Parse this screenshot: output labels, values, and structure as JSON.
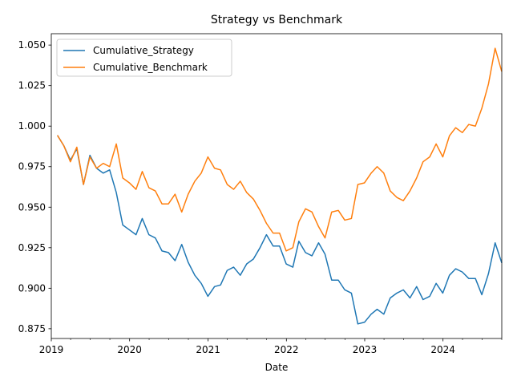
{
  "chart_data": {
    "type": "line",
    "title": "Strategy vs Benchmark",
    "xlabel": "Date",
    "ylabel": "",
    "xlim": [
      "2019-01-01",
      "2024-10-01"
    ],
    "ylim": [
      0.869,
      1.057
    ],
    "x_ticks": [
      {
        "date": "2019-01-01",
        "label": "2019"
      },
      {
        "date": "2020-01-01",
        "label": "2020"
      },
      {
        "date": "2021-01-01",
        "label": "2021"
      },
      {
        "date": "2022-01-01",
        "label": "2022"
      },
      {
        "date": "2023-01-01",
        "label": "2023"
      },
      {
        "date": "2024-01-01",
        "label": "2024"
      }
    ],
    "y_ticks": [
      "0.875",
      "0.900",
      "0.925",
      "0.950",
      "0.975",
      "1.000",
      "1.025",
      "1.050"
    ],
    "grid": false,
    "legend_position": "top-left",
    "x": [
      "2019-01-31",
      "2019-02-28",
      "2019-03-31",
      "2019-04-30",
      "2019-05-31",
      "2019-06-30",
      "2019-07-31",
      "2019-08-31",
      "2019-09-30",
      "2019-10-31",
      "2019-11-30",
      "2019-12-31",
      "2020-01-31",
      "2020-02-29",
      "2020-03-31",
      "2020-04-30",
      "2020-05-31",
      "2020-06-30",
      "2020-07-31",
      "2020-08-31",
      "2020-09-30",
      "2020-10-31",
      "2020-11-30",
      "2020-12-31",
      "2021-01-31",
      "2021-02-28",
      "2021-03-31",
      "2021-04-30",
      "2021-05-31",
      "2021-06-30",
      "2021-07-31",
      "2021-08-31",
      "2021-09-30",
      "2021-10-31",
      "2021-11-30",
      "2021-12-31",
      "2022-01-31",
      "2022-02-28",
      "2022-03-31",
      "2022-04-30",
      "2022-05-31",
      "2022-06-30",
      "2022-07-31",
      "2022-08-31",
      "2022-09-30",
      "2022-10-31",
      "2022-11-30",
      "2022-12-31",
      "2023-01-31",
      "2023-02-28",
      "2023-03-31",
      "2023-04-30",
      "2023-05-31",
      "2023-06-30",
      "2023-07-31",
      "2023-08-31",
      "2023-09-30",
      "2023-10-31",
      "2023-11-30",
      "2023-12-31",
      "2024-01-31",
      "2024-02-29",
      "2024-03-31",
      "2024-04-30",
      "2024-05-31",
      "2024-06-30",
      "2024-07-31",
      "2024-08-31",
      "2024-09-30"
    ],
    "series": [
      {
        "name": "Cumulative_Strategy",
        "color": "#1f77b4",
        "values": [
          0.994,
          0.988,
          0.979,
          0.986,
          0.964,
          0.982,
          0.974,
          0.971,
          0.973,
          0.959,
          0.939,
          0.936,
          0.933,
          0.943,
          0.933,
          0.931,
          0.923,
          0.922,
          0.917,
          0.927,
          0.916,
          0.908,
          0.903,
          0.895,
          0.901,
          0.902,
          0.911,
          0.913,
          0.908,
          0.915,
          0.918,
          0.925,
          0.933,
          0.926,
          0.926,
          0.915,
          0.913,
          0.929,
          0.922,
          0.92,
          0.928,
          0.921,
          0.905,
          0.905,
          0.899,
          0.897,
          0.878,
          0.879,
          0.884,
          0.887,
          0.884,
          0.894,
          0.897,
          0.899,
          0.894,
          0.901,
          0.893,
          0.895,
          0.903,
          0.897,
          0.908,
          0.912,
          0.91,
          0.906,
          0.906,
          0.896,
          0.909,
          0.928,
          0.916
        ]
      },
      {
        "name": "Cumulative_Benchmark",
        "color": "#ff7f0e",
        "values": [
          0.994,
          0.988,
          0.978,
          0.987,
          0.964,
          0.981,
          0.974,
          0.977,
          0.975,
          0.989,
          0.968,
          0.965,
          0.961,
          0.972,
          0.962,
          0.96,
          0.952,
          0.952,
          0.958,
          0.947,
          0.958,
          0.966,
          0.971,
          0.981,
          0.974,
          0.973,
          0.964,
          0.961,
          0.966,
          0.959,
          0.955,
          0.948,
          0.94,
          0.934,
          0.934,
          0.923,
          0.925,
          0.941,
          0.949,
          0.947,
          0.938,
          0.931,
          0.947,
          0.948,
          0.942,
          0.943,
          0.964,
          0.965,
          0.971,
          0.975,
          0.971,
          0.96,
          0.956,
          0.954,
          0.96,
          0.968,
          0.978,
          0.981,
          0.989,
          0.981,
          0.994,
          0.999,
          0.996,
          1.001,
          1.0,
          1.011,
          1.026,
          1.048,
          1.034
        ]
      }
    ]
  }
}
